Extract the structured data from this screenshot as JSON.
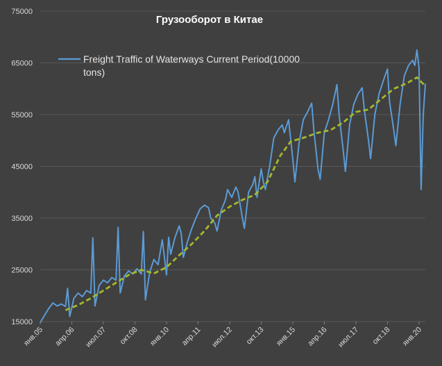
{
  "chart_data": {
    "type": "line",
    "title": "Грузооборот в Китае",
    "xlabel": "",
    "ylabel": "",
    "ylim": [
      15000,
      75000
    ],
    "y_ticks": [
      15000,
      25000,
      35000,
      45000,
      55000,
      65000,
      75000
    ],
    "x_range": [
      "2005-01",
      "2020-04"
    ],
    "x_tick_labels": [
      "янв.05",
      "апр.06",
      "июл.07",
      "окт.08",
      "янв.10",
      "апр.11",
      "июл.12",
      "окт.13",
      "янв.15",
      "апр.16",
      "июл.17",
      "окт.18",
      "янв.20"
    ],
    "grid": {
      "horizontal": true,
      "vertical": false
    },
    "legend": {
      "position": "top-left",
      "entries": [
        "Freight Traffic of Waterways Current Period(10000",
        "tons)"
      ]
    },
    "series": [
      {
        "name": "Freight Traffic of Waterways Current Period(10000 tons)",
        "color": "#5b9bd5",
        "style": "solid",
        "points": [
          [
            "2005-01",
            14800
          ],
          [
            "2005-03",
            16200
          ],
          [
            "2005-05",
            17500
          ],
          [
            "2005-07",
            18600
          ],
          [
            "2005-09",
            18000
          ],
          [
            "2005-11",
            18400
          ],
          [
            "2006-01",
            17900
          ],
          [
            "2006-02",
            21400
          ],
          [
            "2006-03",
            16000
          ],
          [
            "2006-05",
            19500
          ],
          [
            "2006-07",
            20500
          ],
          [
            "2006-09",
            19800
          ],
          [
            "2006-11",
            21000
          ],
          [
            "2007-01",
            20500
          ],
          [
            "2007-02",
            31200
          ],
          [
            "2007-03",
            18000
          ],
          [
            "2007-05",
            22000
          ],
          [
            "2007-07",
            23000
          ],
          [
            "2007-09",
            22500
          ],
          [
            "2007-11",
            23500
          ],
          [
            "2008-01",
            23000
          ],
          [
            "2008-02",
            33200
          ],
          [
            "2008-03",
            20500
          ],
          [
            "2008-05",
            23800
          ],
          [
            "2008-07",
            24800
          ],
          [
            "2008-09",
            24200
          ],
          [
            "2008-11",
            25200
          ],
          [
            "2009-01",
            24200
          ],
          [
            "2009-02",
            32400
          ],
          [
            "2009-03",
            19200
          ],
          [
            "2009-05",
            24500
          ],
          [
            "2009-07",
            27000
          ],
          [
            "2009-09",
            26000
          ],
          [
            "2009-11",
            30800
          ],
          [
            "2010-01",
            24000
          ],
          [
            "2010-02",
            31300
          ],
          [
            "2010-03",
            28000
          ],
          [
            "2010-05",
            31200
          ],
          [
            "2010-07",
            33500
          ],
          [
            "2010-08",
            32000
          ],
          [
            "2010-09",
            27400
          ],
          [
            "2010-11",
            30500
          ],
          [
            "2011-01",
            33000
          ],
          [
            "2011-03",
            35000
          ],
          [
            "2011-05",
            36800
          ],
          [
            "2011-07",
            37500
          ],
          [
            "2011-09",
            37000
          ],
          [
            "2011-10",
            35000
          ],
          [
            "2011-12",
            34000
          ],
          [
            "2012-01",
            32500
          ],
          [
            "2012-03",
            36500
          ],
          [
            "2012-05",
            38500
          ],
          [
            "2012-06",
            40500
          ],
          [
            "2012-08",
            39000
          ],
          [
            "2012-10",
            41000
          ],
          [
            "2012-11",
            40000
          ],
          [
            "2013-01",
            35200
          ],
          [
            "2013-02",
            33000
          ],
          [
            "2013-04",
            40000
          ],
          [
            "2013-06",
            41500
          ],
          [
            "2013-07",
            43000
          ],
          [
            "2013-08",
            39000
          ],
          [
            "2013-10",
            44500
          ],
          [
            "2013-11",
            42000
          ],
          [
            "2013-12",
            40500
          ],
          [
            "2014-02",
            45000
          ],
          [
            "2014-04",
            50500
          ],
          [
            "2014-06",
            52000
          ],
          [
            "2014-08",
            53000
          ],
          [
            "2014-09",
            51500
          ],
          [
            "2014-11",
            54000
          ],
          [
            "2015-01",
            46500
          ],
          [
            "2015-02",
            42000
          ],
          [
            "2015-04",
            49500
          ],
          [
            "2015-06",
            54000
          ],
          [
            "2015-08",
            55500
          ],
          [
            "2015-10",
            57200
          ],
          [
            "2015-11",
            52000
          ],
          [
            "2016-01",
            44500
          ],
          [
            "2016-02",
            42500
          ],
          [
            "2016-04",
            51500
          ],
          [
            "2016-06",
            54000
          ],
          [
            "2016-08",
            57000
          ],
          [
            "2016-10",
            60800
          ],
          [
            "2016-11",
            55000
          ],
          [
            "2017-01",
            48000
          ],
          [
            "2017-02",
            44000
          ],
          [
            "2017-04",
            53000
          ],
          [
            "2017-06",
            57000
          ],
          [
            "2017-08",
            59000
          ],
          [
            "2017-10",
            60200
          ],
          [
            "2017-11",
            56000
          ],
          [
            "2018-01",
            50000
          ],
          [
            "2018-02",
            46500
          ],
          [
            "2018-04",
            55000
          ],
          [
            "2018-06",
            59000
          ],
          [
            "2018-08",
            61500
          ],
          [
            "2018-10",
            63800
          ],
          [
            "2018-11",
            57500
          ],
          [
            "2019-01",
            52000
          ],
          [
            "2019-02",
            49000
          ],
          [
            "2019-04",
            57000
          ],
          [
            "2019-06",
            62500
          ],
          [
            "2019-08",
            64500
          ],
          [
            "2019-10",
            65500
          ],
          [
            "2019-11",
            64500
          ],
          [
            "2019-12",
            67500
          ],
          [
            "2020-01",
            64000
          ],
          [
            "2020-02",
            40500
          ],
          [
            "2020-03",
            55000
          ],
          [
            "2020-04",
            61000
          ]
        ]
      },
      {
        "name": "",
        "color": "#a5b82b",
        "style": "dashed",
        "points": [
          [
            "2006-01",
            17200
          ],
          [
            "2006-07",
            18200
          ],
          [
            "2007-01",
            19500
          ],
          [
            "2007-07",
            21000
          ],
          [
            "2008-01",
            22500
          ],
          [
            "2008-07",
            24000
          ],
          [
            "2009-01",
            25000
          ],
          [
            "2009-07",
            24300
          ],
          [
            "2010-01",
            25500
          ],
          [
            "2010-07",
            27800
          ],
          [
            "2011-01",
            30000
          ],
          [
            "2011-07",
            32500
          ],
          [
            "2012-01",
            35500
          ],
          [
            "2012-07",
            37200
          ],
          [
            "2013-01",
            38500
          ],
          [
            "2013-07",
            39500
          ],
          [
            "2014-01",
            42000
          ],
          [
            "2014-07",
            47000
          ],
          [
            "2014-12",
            49800
          ],
          [
            "2015-06",
            50500
          ],
          [
            "2016-01",
            51500
          ],
          [
            "2016-07",
            52000
          ],
          [
            "2017-01",
            53500
          ],
          [
            "2017-07",
            55500
          ],
          [
            "2018-01",
            56000
          ],
          [
            "2018-07",
            58000
          ],
          [
            "2019-01",
            60000
          ],
          [
            "2019-07",
            61000
          ],
          [
            "2019-12",
            62200
          ],
          [
            "2020-04",
            60500
          ]
        ]
      }
    ]
  }
}
